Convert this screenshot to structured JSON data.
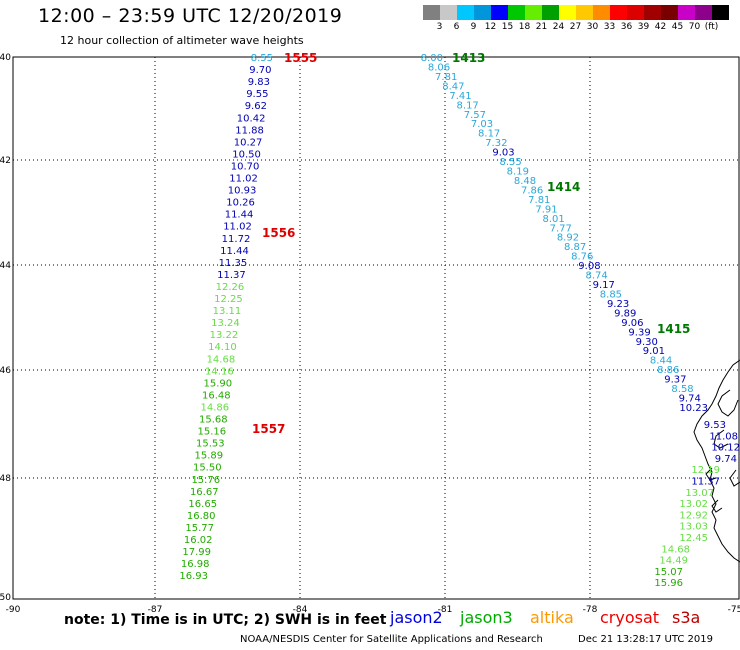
{
  "header": {
    "title": "12:00 – 23:59 UTC 12/20/2019",
    "subtitle": "12 hour collection of altimeter wave heights"
  },
  "colorbar": {
    "colors": [
      "#808080",
      "#c8c8c8",
      "#00c8ff",
      "#0096dc",
      "#0000ff",
      "#00c800",
      "#66ee00",
      "#00a000",
      "#ffff00",
      "#ffc800",
      "#ff8c00",
      "#ff0000",
      "#dc0000",
      "#a00000",
      "#780000",
      "#c800c8",
      "#8c008c",
      "#000000"
    ],
    "labels": [
      "3",
      "6",
      "9",
      "12",
      "15",
      "18",
      "21",
      "24",
      "27",
      "30",
      "33",
      "36",
      "39",
      "42",
      "45",
      "70",
      "(ft)"
    ]
  },
  "map": {
    "lon_ticks": [
      "-90",
      "-87",
      "-84",
      "-81",
      "-78",
      "-75"
    ],
    "lat_ticks": [
      "40",
      "42",
      "44",
      "46",
      "48",
      "50"
    ]
  },
  "tracks": [
    {
      "points": [
        {
          "v": "8.55",
          "c": "#2aa8d8"
        },
        {
          "v": "9.70",
          "c": "#0000b4"
        },
        {
          "v": "9.83",
          "c": "#0000b4"
        },
        {
          "v": "9.55",
          "c": "#0000b4"
        },
        {
          "v": "9.62",
          "c": "#0000b4"
        },
        {
          "v": "10.42",
          "c": "#0000b4"
        },
        {
          "v": "11.88",
          "c": "#0000b4"
        },
        {
          "v": "10.27",
          "c": "#0000b4"
        },
        {
          "v": "10.50",
          "c": "#0000b4"
        },
        {
          "v": "10.70",
          "c": "#0000b4"
        },
        {
          "v": "11.02",
          "c": "#0000b4"
        },
        {
          "v": "10.93",
          "c": "#0000b4"
        },
        {
          "v": "10.26",
          "c": "#0000b4"
        },
        {
          "v": "11.44",
          "c": "#0000b4"
        },
        {
          "v": "11.02",
          "c": "#0000b4"
        },
        {
          "v": "11.72",
          "c": "#0000b4"
        },
        {
          "v": "11.44",
          "c": "#0000b4"
        },
        {
          "v": "11.35",
          "c": "#0000b4"
        },
        {
          "v": "11.37",
          "c": "#0000b4"
        },
        {
          "v": "12.26",
          "c": "#66dd44"
        },
        {
          "v": "12.25",
          "c": "#66dd44"
        },
        {
          "v": "13.11",
          "c": "#66dd44"
        },
        {
          "v": "13.24",
          "c": "#66dd44"
        },
        {
          "v": "13.22",
          "c": "#66dd44"
        },
        {
          "v": "14.10",
          "c": "#66dd44"
        },
        {
          "v": "14.68",
          "c": "#66dd44"
        },
        {
          "v": "14.16",
          "c": "#66dd44"
        },
        {
          "v": "15.90",
          "c": "#22aa00"
        },
        {
          "v": "16.48",
          "c": "#22aa00"
        },
        {
          "v": "14.86",
          "c": "#66dd44"
        },
        {
          "v": "15.68",
          "c": "#22aa00"
        },
        {
          "v": "15.16",
          "c": "#22aa00"
        },
        {
          "v": "15.53",
          "c": "#22aa00"
        },
        {
          "v": "15.89",
          "c": "#22aa00"
        },
        {
          "v": "15.50",
          "c": "#22aa00"
        },
        {
          "v": "15.76",
          "c": "#22aa00"
        },
        {
          "v": "16.67",
          "c": "#22aa00"
        },
        {
          "v": "16.65",
          "c": "#22aa00"
        },
        {
          "v": "16.80",
          "c": "#22aa00"
        },
        {
          "v": "15.77",
          "c": "#22aa00"
        },
        {
          "v": "16.02",
          "c": "#22aa00"
        },
        {
          "v": "17.99",
          "c": "#22aa00"
        },
        {
          "v": "16.98",
          "c": "#22aa00"
        },
        {
          "v": "16.93",
          "c": "#22aa00"
        }
      ]
    },
    {
      "points": [
        {
          "v": "8.00",
          "c": "#2aa8d8"
        },
        {
          "v": "8.06",
          "c": "#2aa8d8"
        },
        {
          "v": "7.81",
          "c": "#2aa8d8"
        },
        {
          "v": "8.47",
          "c": "#2aa8d8"
        },
        {
          "v": "7.41",
          "c": "#2aa8d8"
        },
        {
          "v": "8.17",
          "c": "#2aa8d8"
        },
        {
          "v": "7.57",
          "c": "#2aa8d8"
        },
        {
          "v": "7.03",
          "c": "#2aa8d8"
        },
        {
          "v": "8.17",
          "c": "#2aa8d8"
        },
        {
          "v": "7.32",
          "c": "#2aa8d8"
        },
        {
          "v": "9.03",
          "c": "#0000b4"
        },
        {
          "v": "8.55",
          "c": "#2aa8d8"
        },
        {
          "v": "8.19",
          "c": "#2aa8d8"
        },
        {
          "v": "8.48",
          "c": "#2aa8d8"
        },
        {
          "v": "7.86",
          "c": "#2aa8d8"
        },
        {
          "v": "7.81",
          "c": "#2aa8d8"
        },
        {
          "v": "7.91",
          "c": "#2aa8d8"
        },
        {
          "v": "8.01",
          "c": "#2aa8d8"
        },
        {
          "v": "7.77",
          "c": "#2aa8d8"
        },
        {
          "v": "8.92",
          "c": "#2aa8d8"
        },
        {
          "v": "8.87",
          "c": "#2aa8d8"
        },
        {
          "v": "8.76",
          "c": "#2aa8d8"
        },
        {
          "v": "9.08",
          "c": "#0000b4"
        },
        {
          "v": "8.74",
          "c": "#2aa8d8"
        },
        {
          "v": "9.17",
          "c": "#0000b4"
        },
        {
          "v": "8.85",
          "c": "#2aa8d8"
        },
        {
          "v": "9.23",
          "c": "#0000b4"
        },
        {
          "v": "9.89",
          "c": "#0000b4"
        },
        {
          "v": "9.06",
          "c": "#0000b4"
        },
        {
          "v": "9.39",
          "c": "#0000b4"
        },
        {
          "v": "9.30",
          "c": "#0000b4"
        },
        {
          "v": "9.01",
          "c": "#0000b4"
        },
        {
          "v": "8.44",
          "c": "#2aa8d8"
        },
        {
          "v": "8.86",
          "c": "#2aa8d8"
        },
        {
          "v": "9.37",
          "c": "#0000b4"
        },
        {
          "v": "8.58",
          "c": "#2aa8d8"
        },
        {
          "v": "9.74",
          "c": "#0000b4"
        },
        {
          "v": "10.23",
          "c": "#0000b4"
        }
      ]
    },
    {
      "points": [
        {
          "v": "9.53",
          "c": "#0000b4"
        },
        {
          "v": "11.08",
          "c": "#0000b4"
        },
        {
          "v": "10.12",
          "c": "#0000b4"
        },
        {
          "v": "9.74",
          "c": "#0000b4"
        },
        {
          "v": "12.19",
          "c": "#66dd44"
        },
        {
          "v": "11.37",
          "c": "#0000b4"
        },
        {
          "v": "13.07",
          "c": "#66dd44"
        },
        {
          "v": "13.02",
          "c": "#66dd44"
        },
        {
          "v": "12.92",
          "c": "#66dd44"
        },
        {
          "v": "13.03",
          "c": "#66dd44"
        },
        {
          "v": "12.45",
          "c": "#66dd44"
        },
        {
          "v": "14.68",
          "c": "#66dd44"
        },
        {
          "v": "14.49",
          "c": "#66dd44"
        },
        {
          "v": "15.07",
          "c": "#22aa00"
        },
        {
          "v": "15.96",
          "c": "#22aa00"
        }
      ]
    }
  ],
  "time_labels": [
    {
      "t": "1555",
      "c": "#dd0000"
    },
    {
      "t": "1556",
      "c": "#dd0000"
    },
    {
      "t": "1557",
      "c": "#dd0000"
    },
    {
      "t": "1413",
      "c": "#007700"
    },
    {
      "t": "1414",
      "c": "#007700"
    },
    {
      "t": "1415",
      "c": "#007700"
    }
  ],
  "footer": {
    "note": "note:  1) Time is in UTC;  2) SWH is in feet",
    "credit": "NOAA/NESDIS Center for Satellite Applications and Research",
    "timestamp": "Dec 21 13:28:17 UTC 2019"
  },
  "legend": [
    {
      "name": "jason2",
      "color": "#0000dd"
    },
    {
      "name": "jason3",
      "color": "#00aa00"
    },
    {
      "name": "altika",
      "color": "#ff9900"
    },
    {
      "name": "cryosat",
      "color": "#ee0000"
    },
    {
      "name": "s3a",
      "color": "#bb0000"
    }
  ]
}
